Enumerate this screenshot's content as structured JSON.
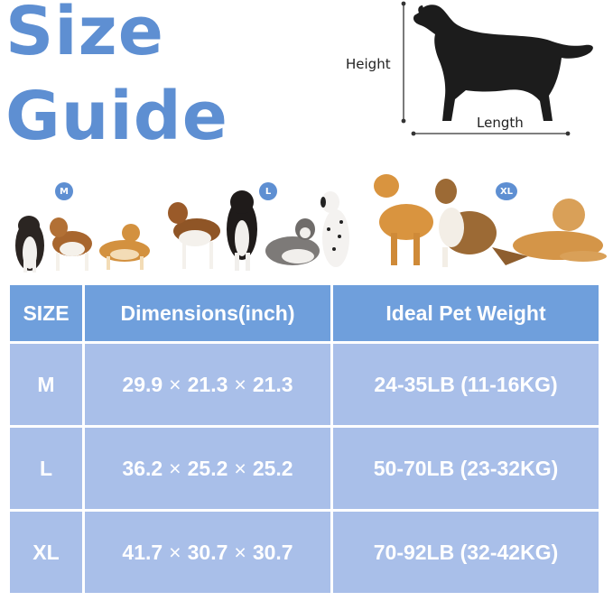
{
  "title": {
    "line1": "Size",
    "line2": "Guide"
  },
  "diagram": {
    "height_label": "Height",
    "length_label": "Length"
  },
  "size_badges": [
    "M",
    "L",
    "XL"
  ],
  "table": {
    "headers": [
      "SIZE",
      "Dimensions(inch)",
      "Ideal Pet Weight"
    ],
    "separator": "×",
    "rows": [
      {
        "size": "M",
        "dims": [
          "29.9",
          "21.3",
          "21.3"
        ],
        "weight": "24-35LB (11-16KG)"
      },
      {
        "size": "L",
        "dims": [
          "36.2",
          "25.2",
          "25.2"
        ],
        "weight": "50-70LB (23-32KG)"
      },
      {
        "size": "XL",
        "dims": [
          "41.7",
          "30.7",
          "30.7"
        ],
        "weight": "70-92LB (32-42KG)"
      }
    ]
  },
  "colors": {
    "accent": "#5e8fd2",
    "header_bg": "#6f9fdc",
    "cell_bg": "#a9bfe9"
  },
  "icons": [
    "dog-silhouette-icon"
  ]
}
